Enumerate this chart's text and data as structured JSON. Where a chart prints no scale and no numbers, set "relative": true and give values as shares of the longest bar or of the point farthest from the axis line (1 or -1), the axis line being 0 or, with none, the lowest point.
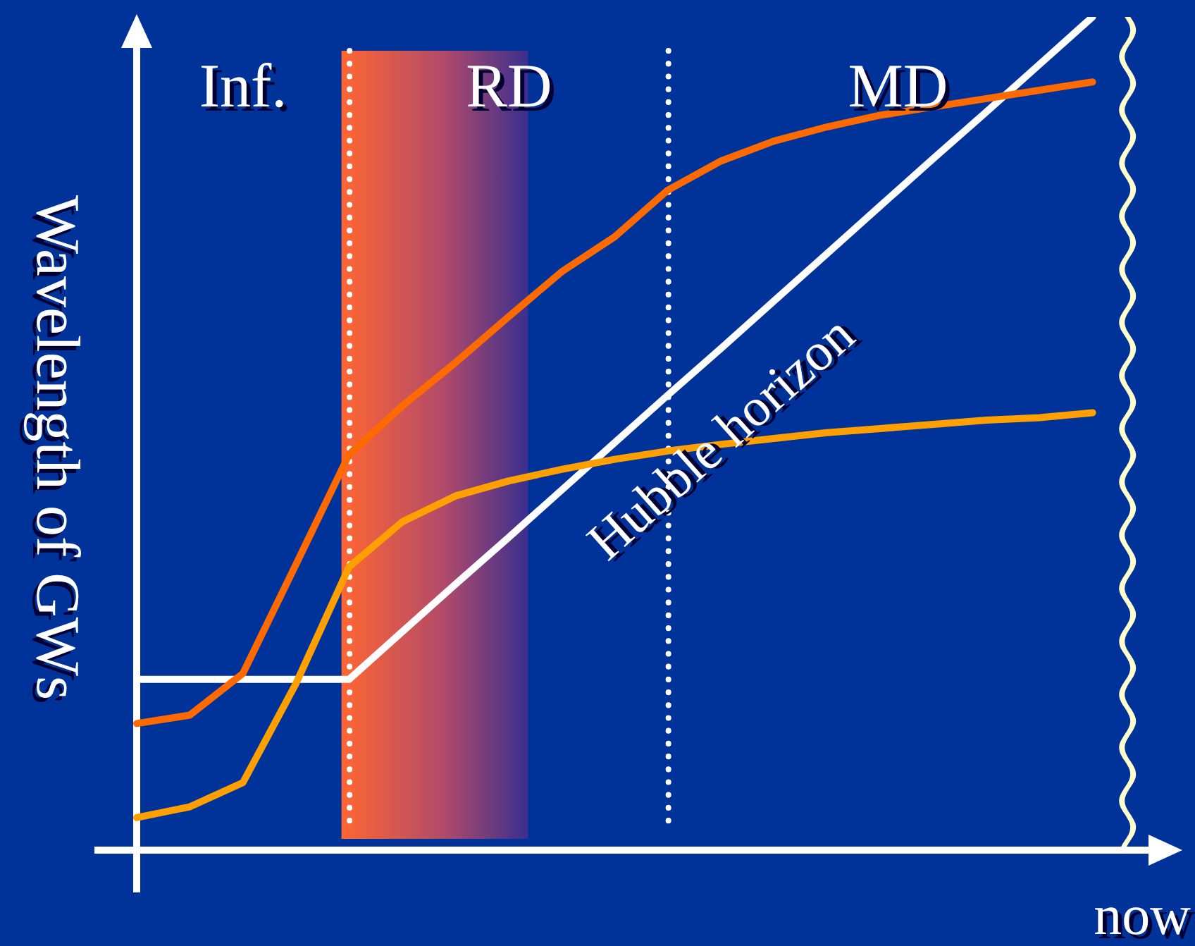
{
  "chart_data": {
    "type": "line",
    "relative": true,
    "ylabel": "Wavelength of GWs",
    "xlabel": "now",
    "legend": false,
    "marker": "none",
    "line_style": "solid",
    "categories": [
      null,
      null,
      null,
      null,
      null,
      null,
      null,
      null,
      null,
      null,
      null,
      null,
      null,
      null,
      null,
      null,
      null,
      null,
      null,
      null
    ],
    "series": [
      {
        "color": "#ff6a00",
        "values": [
          0.152,
          0.162,
          0.212,
          0.343,
          0.475,
          0.533,
          0.585,
          0.64,
          0.694,
          0.736,
          0.792,
          0.827,
          0.851,
          0.868,
          0.882,
          0.892,
          0.902,
          0.912,
          0.922,
          null
        ]
      },
      {
        "color": "#ffa000",
        "values": [
          0.039,
          0.052,
          0.081,
          0.2,
          0.34,
          0.394,
          0.425,
          0.443,
          0.457,
          0.469,
          0.479,
          0.487,
          0.494,
          0.501,
          0.506,
          0.511,
          0.516,
          0.519,
          0.525,
          null
        ]
      },
      {
        "name": "Hubble horizon",
        "color": "#ffffff",
        "values": [
          0.205,
          0.205,
          0.205,
          0.205,
          0.205,
          0.262,
          0.319,
          0.375,
          0.432,
          0.489,
          0.546,
          0.602,
          0.659,
          0.716,
          0.773,
          0.83,
          0.886,
          0.943,
          1.0,
          null
        ]
      }
    ],
    "annotations": [
      "Inf.",
      "RD",
      "MD"
    ]
  }
}
